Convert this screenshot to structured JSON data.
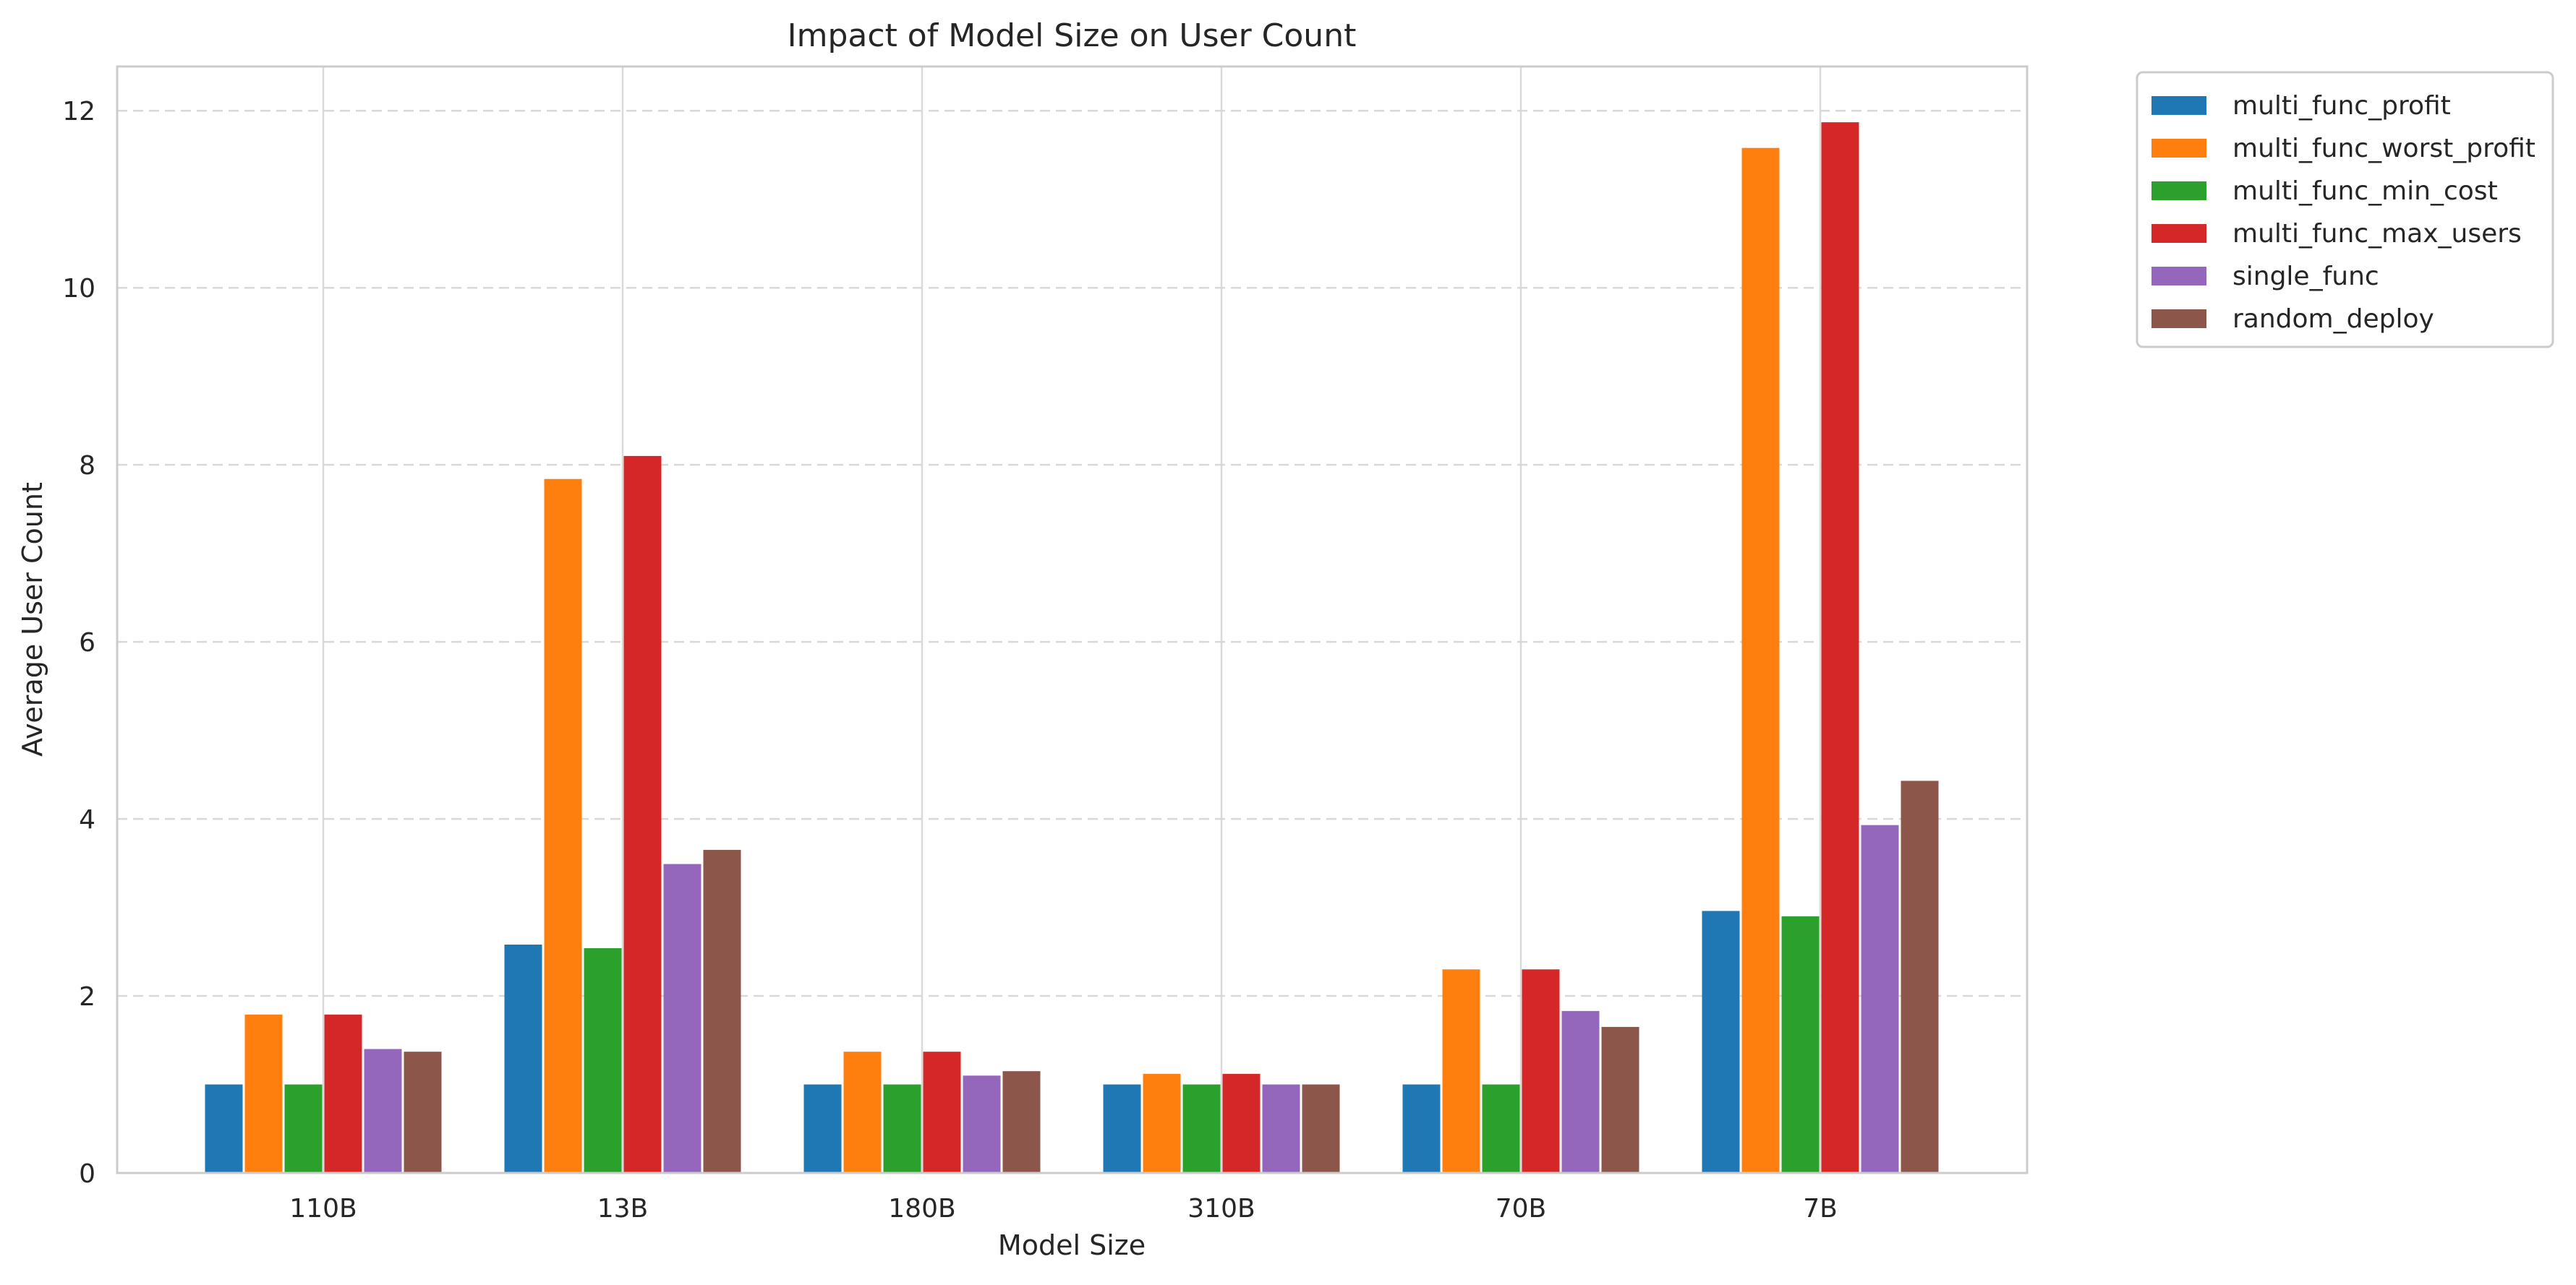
{
  "chart_data": {
    "type": "bar",
    "title": "Impact of Model Size on User Count",
    "xlabel": "Model Size",
    "ylabel": "Average User Count",
    "categories": [
      "110B",
      "13B",
      "180B",
      "310B",
      "70B",
      "7B"
    ],
    "ylim": [
      0,
      12.5
    ],
    "yticks": [
      0,
      2,
      4,
      6,
      8,
      10,
      12
    ],
    "grid": {
      "y": "dashed",
      "x": "solid"
    },
    "legend_position": "outside-top-right",
    "series": [
      {
        "name": "multi_func_profit",
        "color": "#1f77b4",
        "values": [
          1.0,
          2.58,
          1.0,
          1.0,
          1.0,
          2.96
        ]
      },
      {
        "name": "multi_func_worst_profit",
        "color": "#ff7f0e",
        "values": [
          1.79,
          7.84,
          1.37,
          1.12,
          2.3,
          11.58
        ]
      },
      {
        "name": "multi_func_min_cost",
        "color": "#2ca02c",
        "values": [
          1.0,
          2.54,
          1.0,
          1.0,
          1.0,
          2.9
        ]
      },
      {
        "name": "multi_func_max_users",
        "color": "#d62728",
        "values": [
          1.79,
          8.1,
          1.37,
          1.12,
          2.3,
          11.87
        ]
      },
      {
        "name": "single_func",
        "color": "#9467bd",
        "values": [
          1.4,
          3.49,
          1.1,
          1.0,
          1.83,
          3.93
        ]
      },
      {
        "name": "random_deploy",
        "color": "#8c564b",
        "values": [
          1.37,
          3.65,
          1.15,
          1.0,
          1.65,
          4.43
        ]
      }
    ]
  }
}
